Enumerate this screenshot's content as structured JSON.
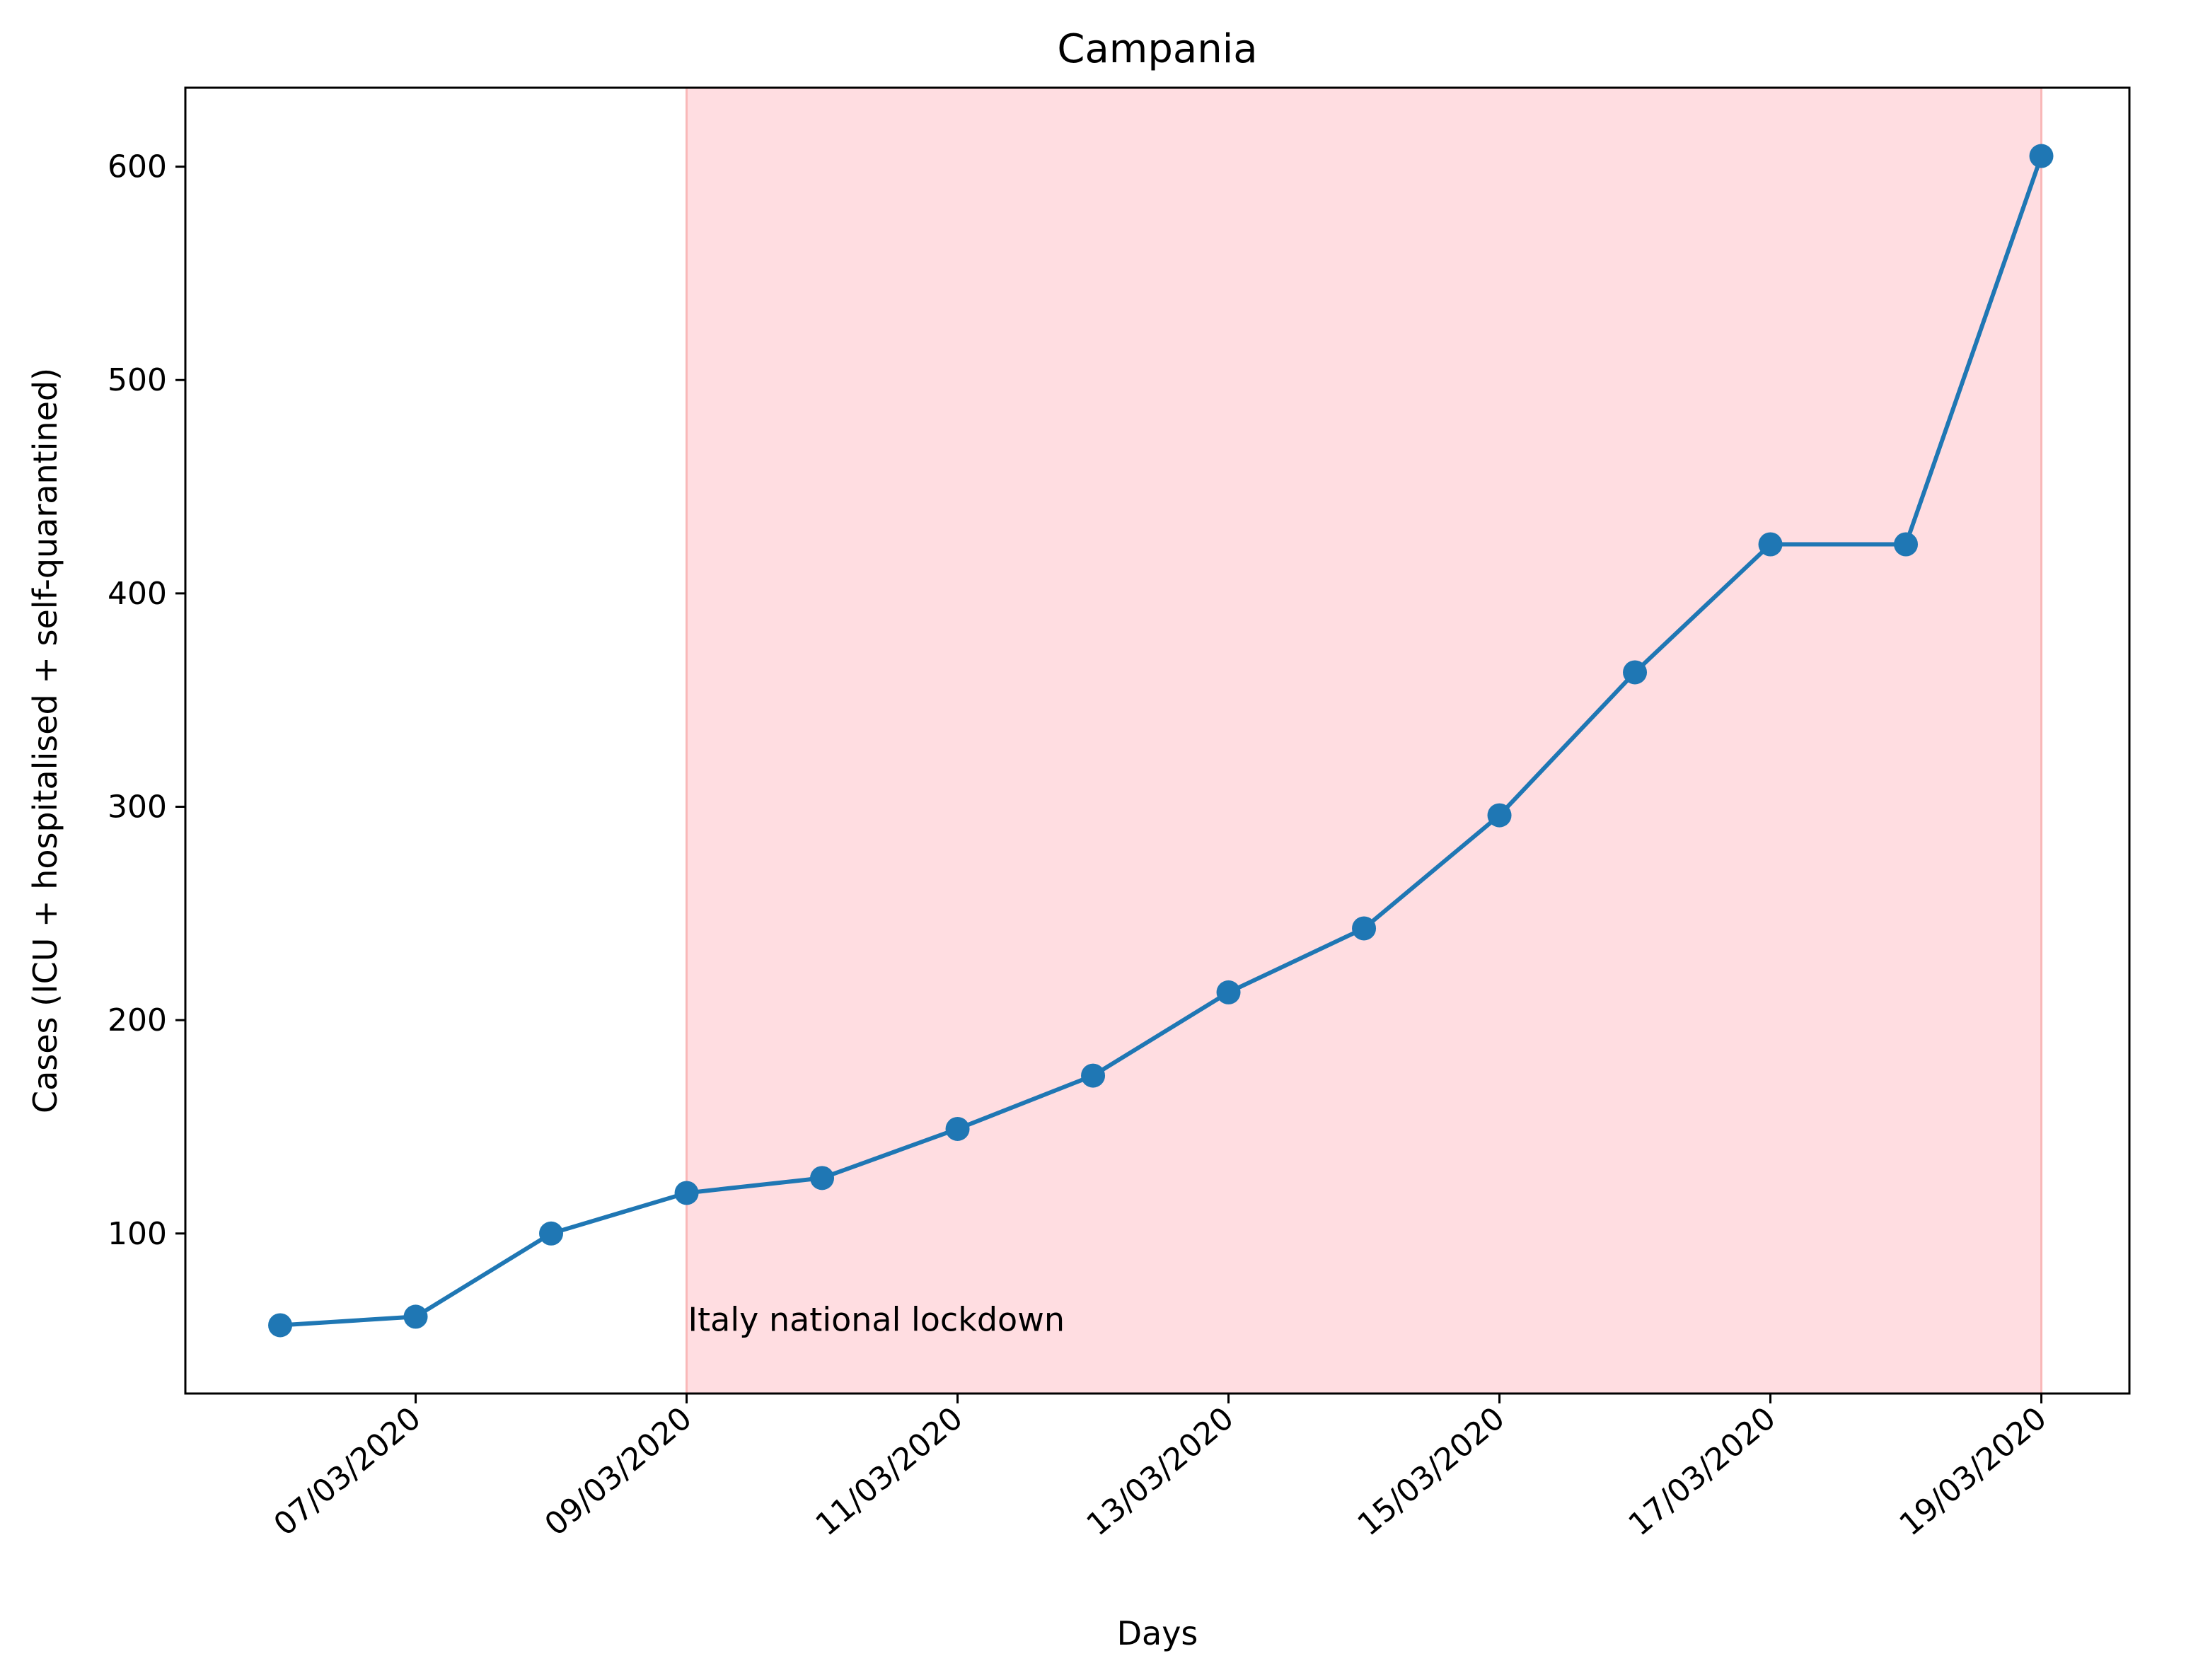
{
  "chart_data": {
    "type": "line",
    "title": "Campania",
    "xlabel": "Days",
    "ylabel": "Cases (ICU + hospitalised + self-quarantined)",
    "x": [
      "06/03/2020",
      "07/03/2020",
      "08/03/2020",
      "09/03/2020",
      "10/03/2020",
      "11/03/2020",
      "12/03/2020",
      "13/03/2020",
      "14/03/2020",
      "15/03/2020",
      "16/03/2020",
      "17/03/2020",
      "18/03/2020",
      "19/03/2020"
    ],
    "series": [
      {
        "values": [
          57,
          61,
          100,
          119,
          126,
          149,
          174,
          213,
          243,
          296,
          363,
          423,
          423,
          605
        ]
      }
    ],
    "x_ticks": [
      "07/03/2020",
      "09/03/2020",
      "11/03/2020",
      "13/03/2020",
      "15/03/2020",
      "17/03/2020",
      "19/03/2020"
    ],
    "y_ticks": [
      100,
      200,
      300,
      400,
      500,
      600
    ],
    "xlim": [
      "05/03/2020 (approx)",
      "20/03/2020 (approx)"
    ],
    "ylim": [
      25,
      637
    ],
    "grid": false,
    "shaded_region": {
      "from": "09/03/2020",
      "to": "19/03/2020",
      "label": "Italy national lockdown"
    },
    "colors": {
      "line": "#1f77b4",
      "shade": "#ffdde1",
      "shade_edge": "#f9b8b8"
    }
  }
}
